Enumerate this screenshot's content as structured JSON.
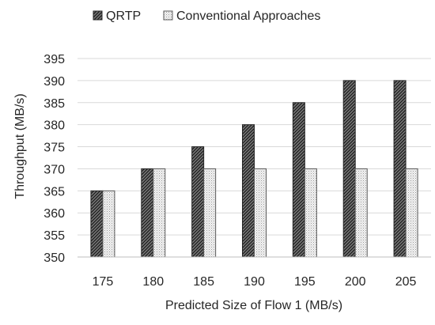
{
  "chart_data": {
    "type": "bar",
    "categories": [
      "175",
      "180",
      "185",
      "190",
      "195",
      "200",
      "205"
    ],
    "series": [
      {
        "name": "QRTP",
        "values": [
          365,
          370,
          375,
          380,
          385,
          390,
          390
        ],
        "pattern": "dense-diagonal-hatch",
        "color": "#3a3a3a"
      },
      {
        "name": "Conventional Approaches",
        "values": [
          365,
          370,
          370,
          370,
          370,
          370,
          370
        ],
        "pattern": "light-dotted",
        "color": "#d9d9d9"
      }
    ],
    "xlabel": "Predicted Size of Flow 1 (MB/s)",
    "ylabel": "Throughput (MB/s)",
    "ylim": [
      350,
      395
    ],
    "yticks": [
      350,
      355,
      360,
      365,
      370,
      375,
      380,
      385,
      390,
      395
    ],
    "grid": true,
    "legend": "top"
  }
}
